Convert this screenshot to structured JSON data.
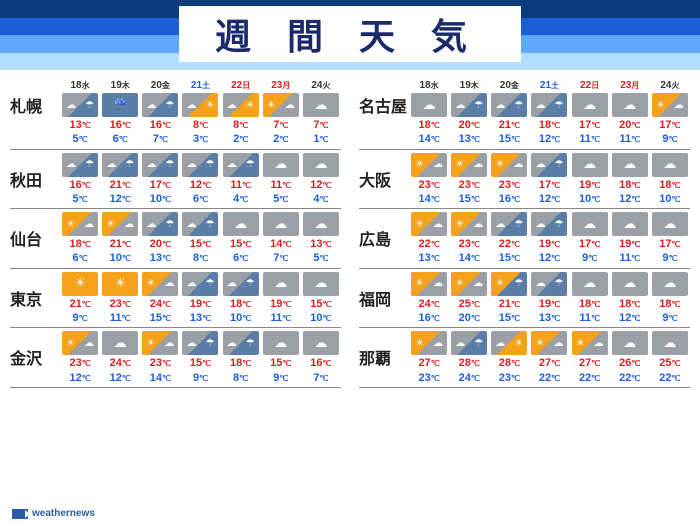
{
  "title": "週間天気",
  "header_stripes": [
    "#0a3b7c",
    "#1a5fd6",
    "#5fa8ff",
    "#b3dfff"
  ],
  "date_label_colors": {
    "weekday": "#333333",
    "saturday": "#1a5fd6",
    "sunday": "#d62020"
  },
  "temp_colors": {
    "high": "#d62020",
    "low": "#1a5fd6"
  },
  "deg_unit": "℃",
  "dates": [
    {
      "d": "18",
      "w": "水",
      "type": "weekday"
    },
    {
      "d": "19",
      "w": "木",
      "type": "weekday"
    },
    {
      "d": "20",
      "w": "金",
      "type": "weekday"
    },
    {
      "d": "21",
      "w": "土",
      "type": "saturday"
    },
    {
      "d": "22",
      "w": "日",
      "type": "sunday"
    },
    {
      "d": "23",
      "w": "月",
      "type": "sunday"
    },
    {
      "d": "24",
      "w": "火",
      "type": "weekday"
    }
  ],
  "columns": [
    [
      {
        "city": "札幌",
        "days": [
          {
            "icon": "cloud-rain",
            "hi": 13,
            "lo": 5
          },
          {
            "icon": "rain",
            "hi": 16,
            "lo": 6
          },
          {
            "icon": "cloud-rain",
            "hi": 16,
            "lo": 7
          },
          {
            "icon": "mix-cs",
            "hi": 8,
            "lo": 3
          },
          {
            "icon": "mix-cs",
            "hi": 8,
            "lo": 2
          },
          {
            "icon": "mix-sc",
            "hi": 7,
            "lo": 2
          },
          {
            "icon": "cloudy",
            "hi": 7,
            "lo": 1
          }
        ]
      },
      {
        "city": "秋田",
        "days": [
          {
            "icon": "cloud-rain",
            "hi": 16,
            "lo": 5
          },
          {
            "icon": "cloud-rain",
            "hi": 21,
            "lo": 12
          },
          {
            "icon": "cloud-rain",
            "hi": 17,
            "lo": 10
          },
          {
            "icon": "cloud-rain",
            "hi": 12,
            "lo": 6
          },
          {
            "icon": "cloud-rain",
            "hi": 11,
            "lo": 4
          },
          {
            "icon": "cloudy",
            "hi": 11,
            "lo": 5
          },
          {
            "icon": "cloudy",
            "hi": 12,
            "lo": 4
          }
        ]
      },
      {
        "city": "仙台",
        "days": [
          {
            "icon": "mix-sc",
            "hi": 18,
            "lo": 6
          },
          {
            "icon": "mix-sc",
            "hi": 21,
            "lo": 10
          },
          {
            "icon": "cloud-rain",
            "hi": 20,
            "lo": 13
          },
          {
            "icon": "cloud-rain",
            "hi": 15,
            "lo": 8
          },
          {
            "icon": "cloudy",
            "hi": 15,
            "lo": 6
          },
          {
            "icon": "cloudy",
            "hi": 14,
            "lo": 7
          },
          {
            "icon": "cloudy",
            "hi": 13,
            "lo": 5
          }
        ]
      },
      {
        "city": "東京",
        "days": [
          {
            "icon": "sunny",
            "hi": 21,
            "lo": 9
          },
          {
            "icon": "sunny",
            "hi": 23,
            "lo": 11
          },
          {
            "icon": "mix-sc",
            "hi": 24,
            "lo": 15
          },
          {
            "icon": "cloud-rain",
            "hi": 19,
            "lo": 13
          },
          {
            "icon": "cloud-rain",
            "hi": 18,
            "lo": 10
          },
          {
            "icon": "cloudy",
            "hi": 19,
            "lo": 11
          },
          {
            "icon": "cloudy",
            "hi": 15,
            "lo": 10
          }
        ]
      },
      {
        "city": "金沢",
        "days": [
          {
            "icon": "mix-sc",
            "hi": 23,
            "lo": 12
          },
          {
            "icon": "cloudy",
            "hi": 24,
            "lo": 12
          },
          {
            "icon": "mix-sc",
            "hi": 23,
            "lo": 14
          },
          {
            "icon": "cloud-rain",
            "hi": 15,
            "lo": 9
          },
          {
            "icon": "cloud-rain",
            "hi": 18,
            "lo": 8
          },
          {
            "icon": "cloudy",
            "hi": 15,
            "lo": 9
          },
          {
            "icon": "cloudy",
            "hi": 16,
            "lo": 7
          }
        ]
      }
    ],
    [
      {
        "city": "名古屋",
        "days": [
          {
            "icon": "cloudy",
            "hi": 18,
            "lo": 14
          },
          {
            "icon": "cloud-rain",
            "hi": 20,
            "lo": 13
          },
          {
            "icon": "cloud-rain",
            "hi": 21,
            "lo": 15
          },
          {
            "icon": "cloud-rain",
            "hi": 18,
            "lo": 12
          },
          {
            "icon": "cloudy",
            "hi": 17,
            "lo": 11
          },
          {
            "icon": "cloudy",
            "hi": 20,
            "lo": 11
          },
          {
            "icon": "mix-sc",
            "hi": 17,
            "lo": 9
          }
        ]
      },
      {
        "city": "大阪",
        "days": [
          {
            "icon": "mix-sc",
            "hi": 23,
            "lo": 14
          },
          {
            "icon": "mix-sc",
            "hi": 23,
            "lo": 15
          },
          {
            "icon": "mix-sc",
            "hi": 23,
            "lo": 16
          },
          {
            "icon": "cloud-rain",
            "hi": 17,
            "lo": 12
          },
          {
            "icon": "cloudy",
            "hi": 19,
            "lo": 10
          },
          {
            "icon": "cloudy",
            "hi": 18,
            "lo": 12
          },
          {
            "icon": "cloudy",
            "hi": 18,
            "lo": 10
          }
        ]
      },
      {
        "city": "広島",
        "days": [
          {
            "icon": "mix-sc",
            "hi": 22,
            "lo": 13
          },
          {
            "icon": "mix-sc",
            "hi": 23,
            "lo": 14
          },
          {
            "icon": "cloud-rain",
            "hi": 22,
            "lo": 15
          },
          {
            "icon": "cloud-rain",
            "hi": 19,
            "lo": 12
          },
          {
            "icon": "cloudy",
            "hi": 17,
            "lo": 9
          },
          {
            "icon": "cloudy",
            "hi": 19,
            "lo": 11
          },
          {
            "icon": "cloudy",
            "hi": 17,
            "lo": 9
          }
        ]
      },
      {
        "city": "福岡",
        "days": [
          {
            "icon": "mix-sc",
            "hi": 24,
            "lo": 16
          },
          {
            "icon": "mix-sc",
            "hi": 25,
            "lo": 20
          },
          {
            "icon": "sun-rain",
            "hi": 21,
            "lo": 15
          },
          {
            "icon": "cloud-rain",
            "hi": 19,
            "lo": 13
          },
          {
            "icon": "cloudy",
            "hi": 18,
            "lo": 11
          },
          {
            "icon": "cloudy",
            "hi": 18,
            "lo": 12
          },
          {
            "icon": "cloudy",
            "hi": 18,
            "lo": 9
          }
        ]
      },
      {
        "city": "那覇",
        "days": [
          {
            "icon": "mix-sc",
            "hi": 27,
            "lo": 23
          },
          {
            "icon": "cloud-rain",
            "hi": 28,
            "lo": 24
          },
          {
            "icon": "mix-cs",
            "hi": 28,
            "lo": 23
          },
          {
            "icon": "mix-sc",
            "hi": 27,
            "lo": 22
          },
          {
            "icon": "mix-sc",
            "hi": 27,
            "lo": 22
          },
          {
            "icon": "cloudy",
            "hi": 26,
            "lo": 22
          },
          {
            "icon": "cloudy",
            "hi": 25,
            "lo": 22
          }
        ]
      }
    ]
  ],
  "icon_map": {
    "sunny": "w-sunny",
    "cloudy": "w-cloudy",
    "mix-sc": "w-mix-sc",
    "mix-cs": "w-mix-cs",
    "rain": "w-rain",
    "cloud-rain": "w-cloud-rain",
    "sun-rain": "w-sun-rain"
  },
  "footer": "weathernews"
}
